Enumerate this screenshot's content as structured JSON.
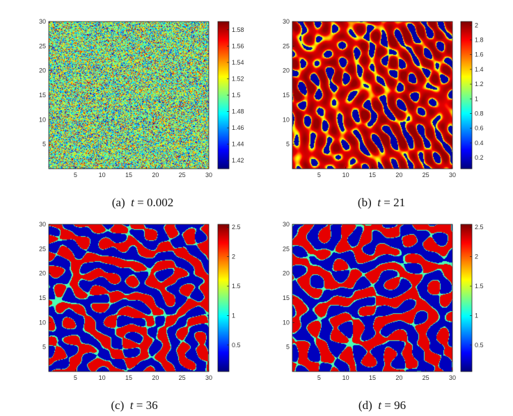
{
  "figure": {
    "panels": [
      {
        "caption": {
          "label": "(a)",
          "variable": "t",
          "equals": "=",
          "value": "0.002"
        },
        "pattern": "noise",
        "colorbar": {
          "ticks": [
            "1.58",
            "1.56",
            "1.54",
            "1.52",
            "1.5",
            "1.48",
            "1.46",
            "1.44",
            "1.42"
          ],
          "range": [
            1.41,
            1.59
          ]
        }
      },
      {
        "caption": {
          "label": "(b)",
          "variable": "t",
          "equals": "=",
          "value": "21"
        },
        "pattern": "spots",
        "colorbar": {
          "ticks": [
            "2",
            "1.8",
            "1.6",
            "1.4",
            "1.2",
            "1",
            "0.8",
            "0.6",
            "0.4",
            "0.2"
          ],
          "range": [
            0.05,
            2.05
          ]
        }
      },
      {
        "caption": {
          "label": "(c)",
          "variable": "t",
          "equals": "=",
          "value": "36"
        },
        "pattern": "blobs",
        "colorbar": {
          "ticks": [
            "2.5",
            "2",
            "1.5",
            "1",
            "0.5"
          ],
          "range": [
            0.05,
            2.55
          ]
        }
      },
      {
        "caption": {
          "label": "(d)",
          "variable": "t",
          "equals": "=",
          "value": "96"
        },
        "pattern": "labyrinth",
        "colorbar": {
          "ticks": [
            "2.5",
            "2",
            "1.5",
            "1",
            "0.5"
          ],
          "range": [
            0.05,
            2.55
          ]
        }
      }
    ],
    "axes": {
      "x_ticks": [
        "5",
        "10",
        "15",
        "20",
        "25",
        "30"
      ],
      "y_ticks": [
        "30",
        "25",
        "20",
        "15",
        "10",
        "5"
      ],
      "xlim": [
        0,
        30
      ],
      "ylim": [
        0,
        30
      ]
    },
    "colormap": "jet"
  }
}
